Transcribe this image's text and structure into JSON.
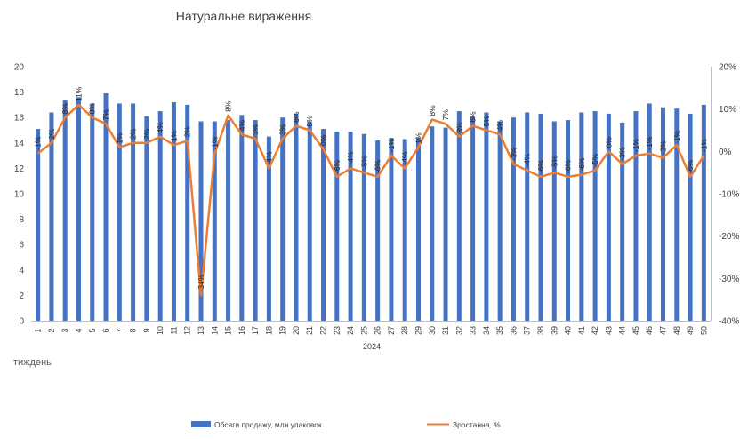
{
  "chart_data": {
    "type": "bar",
    "title": "Натуральне вираження",
    "xlabel": "тиждень",
    "year_label": "2024",
    "x": [
      1,
      2,
      3,
      4,
      5,
      6,
      7,
      8,
      9,
      10,
      11,
      12,
      13,
      14,
      15,
      16,
      17,
      18,
      19,
      20,
      21,
      22,
      23,
      24,
      25,
      26,
      27,
      28,
      29,
      30,
      31,
      32,
      33,
      34,
      35,
      36,
      37,
      38,
      39,
      40,
      41,
      42,
      43,
      44,
      45,
      46,
      47,
      48,
      49,
      50
    ],
    "y_left_lim": [
      0,
      20
    ],
    "y_left_ticks": [
      0,
      2,
      4,
      6,
      8,
      10,
      12,
      14,
      16,
      18,
      20
    ],
    "y_right_lim": [
      -40,
      20
    ],
    "y_right_ticks": [
      "-40%",
      "-30%",
      "-20%",
      "-10%",
      "0%",
      "10%",
      "20%"
    ],
    "series": [
      {
        "name": "Обсяги продажу, млн упаковок",
        "type": "bar",
        "axis": "left",
        "color": "#4472C4",
        "values": [
          15.1,
          16.4,
          17.4,
          17.6,
          17.1,
          17.9,
          17.1,
          17.1,
          16.1,
          16.5,
          17.2,
          17.0,
          15.7,
          15.7,
          15.8,
          16.2,
          15.8,
          14.5,
          16.0,
          16.3,
          15.7,
          15.1,
          14.9,
          14.9,
          14.7,
          14.2,
          14.4,
          14.3,
          14.4,
          15.3,
          15.2,
          16.5,
          16.1,
          16.4,
          15.7,
          16.0,
          16.4,
          16.3,
          15.7,
          15.8,
          16.4,
          16.5,
          16.3,
          15.6,
          16.5,
          17.1,
          16.8,
          16.7,
          16.3,
          17.0
        ]
      },
      {
        "name": "Зростання, %",
        "type": "line",
        "axis": "right",
        "color": "#ED7D31",
        "values": [
          -0.5,
          2.0,
          8.0,
          11.0,
          8.0,
          6.5,
          1.0,
          2.0,
          2.0,
          3.5,
          1.5,
          2.5,
          -34.0,
          -0.5,
          8.5,
          4.0,
          3.0,
          -4.0,
          3.0,
          6.0,
          5.0,
          0.5,
          -6.0,
          -4.0,
          -5.0,
          -6.0,
          -1.0,
          -4.0,
          1.0,
          7.5,
          6.5,
          3.5,
          6.0,
          5.0,
          4.0,
          -3.0,
          -4.5,
          -6.0,
          -5.0,
          -6.0,
          -5.5,
          -4.5,
          0.0,
          -3.0,
          -1.0,
          -0.5,
          -1.5,
          1.5,
          -6.0,
          -1.0
        ],
        "labels": [
          "-1%",
          "2%",
          "8%",
          "11%",
          "8%",
          "7%",
          "1%",
          "2%",
          "2%",
          "4%",
          "1%",
          "2%",
          "-34%",
          "-1%",
          "8%",
          "4%",
          "3%",
          "-4%",
          "3%",
          "6%",
          "5%",
          "0%",
          "-6%",
          "-4%",
          "-5%",
          "-6%",
          "-1%",
          "-4%",
          "1%",
          "8%",
          "7%",
          "3%",
          "6%",
          "5%",
          "4%",
          "-3%",
          "-4%",
          "-6%",
          "-5%",
          "-6%",
          "-6%",
          "-5%",
          "0%",
          "-3%",
          "-1%",
          "-1%",
          "-2%",
          "1%",
          "-6%",
          "-1%"
        ]
      }
    ],
    "legend_position": "bottom",
    "grid": false
  }
}
